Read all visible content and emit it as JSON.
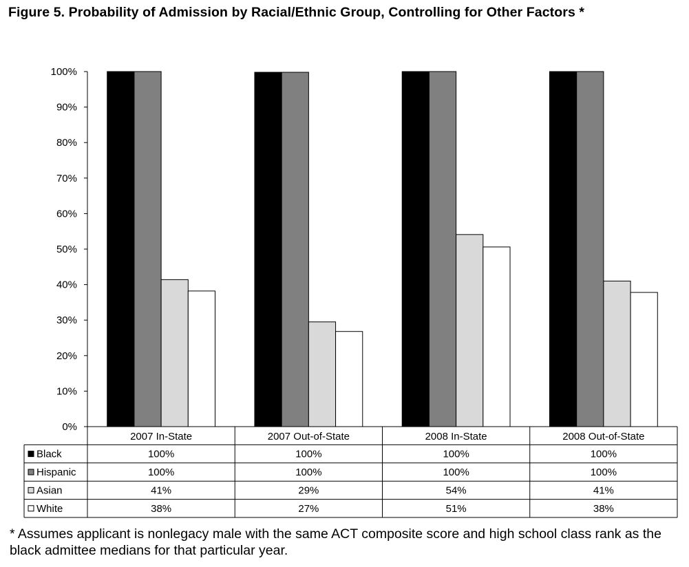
{
  "title": "Figure 5. Probability of Admission by Racial/Ethnic Group, Controlling for Other Factors *",
  "footnote": "* Assumes applicant is nonlegacy male with the same ACT composite score and high school class rank as the black admittee medians for that particular year.",
  "chart_data": {
    "type": "bar",
    "categories": [
      "2007 In-State",
      "2007 Out-of-State",
      "2008 In-State",
      "2008 Out-of-State"
    ],
    "series": [
      {
        "name": "Black",
        "color": "#000000",
        "values": [
          100,
          99.8,
          100,
          100
        ],
        "labels": [
          "100%",
          "100%",
          "100%",
          "100%"
        ]
      },
      {
        "name": "Hispanic",
        "color": "#808080",
        "values": [
          100,
          99.8,
          100,
          100
        ],
        "labels": [
          "100%",
          "100%",
          "100%",
          "100%"
        ]
      },
      {
        "name": "Asian",
        "color": "#d9d9d9",
        "values": [
          41.4,
          29.5,
          54.1,
          41.0
        ],
        "labels": [
          "41%",
          "29%",
          "54%",
          "41%"
        ]
      },
      {
        "name": "White",
        "color": "#ffffff",
        "values": [
          38.2,
          26.8,
          50.6,
          37.8
        ],
        "labels": [
          "38%",
          "27%",
          "51%",
          "38%"
        ]
      }
    ],
    "yticks": [
      "0%",
      "10%",
      "20%",
      "30%",
      "40%",
      "50%",
      "60%",
      "70%",
      "80%",
      "90%",
      "100%"
    ],
    "ylim": [
      0,
      100
    ],
    "grid": false,
    "legend": "data-table"
  }
}
